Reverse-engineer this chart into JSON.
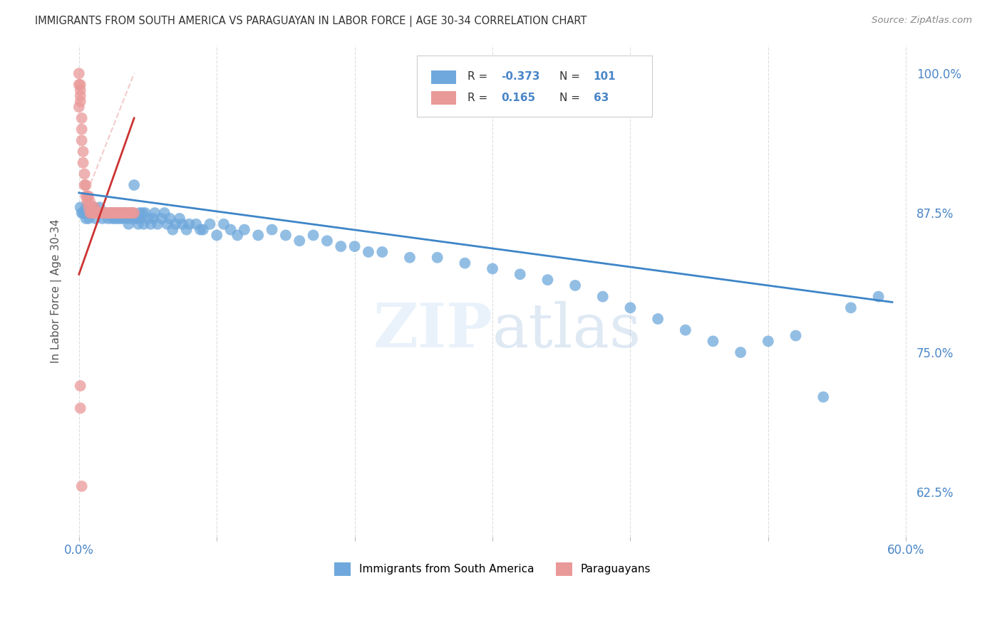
{
  "title": "IMMIGRANTS FROM SOUTH AMERICA VS PARAGUAYAN IN LABOR FORCE | AGE 30-34 CORRELATION CHART",
  "source": "Source: ZipAtlas.com",
  "ylabel": "In Labor Force | Age 30-34",
  "xlim": [
    -0.005,
    0.605
  ],
  "ylim": [
    0.585,
    1.025
  ],
  "xticks": [
    0.0,
    0.1,
    0.2,
    0.3,
    0.4,
    0.5,
    0.6
  ],
  "xticklabels": [
    "0.0%",
    "",
    "",
    "",
    "",
    "",
    "60.0%"
  ],
  "yticks_right": [
    0.625,
    0.75,
    0.875,
    1.0
  ],
  "ytick_right_labels": [
    "62.5%",
    "75.0%",
    "87.5%",
    "100.0%"
  ],
  "blue_R": -0.373,
  "blue_N": 101,
  "pink_R": 0.165,
  "pink_N": 63,
  "blue_color": "#6fa8dc",
  "pink_color": "#ea9999",
  "blue_trend_color": "#3d85c8",
  "pink_trend_color": "#cc3333",
  "ref_line_color": "#ddaaaa",
  "background_color": "#ffffff",
  "grid_color": "#dddddd",
  "text_color": "#4a86c8",
  "title_color": "#333333",
  "blue_scatter_x": [
    0.001,
    0.002,
    0.003,
    0.004,
    0.005,
    0.005,
    0.006,
    0.007,
    0.008,
    0.009,
    0.01,
    0.011,
    0.012,
    0.013,
    0.014,
    0.015,
    0.016,
    0.017,
    0.018,
    0.019,
    0.02,
    0.021,
    0.022,
    0.023,
    0.024,
    0.025,
    0.026,
    0.027,
    0.028,
    0.029,
    0.03,
    0.031,
    0.032,
    0.033,
    0.034,
    0.035,
    0.036,
    0.037,
    0.038,
    0.039,
    0.04,
    0.041,
    0.042,
    0.043,
    0.044,
    0.045,
    0.046,
    0.047,
    0.048,
    0.05,
    0.052,
    0.054,
    0.055,
    0.057,
    0.06,
    0.062,
    0.064,
    0.066,
    0.068,
    0.07,
    0.073,
    0.075,
    0.078,
    0.08,
    0.085,
    0.088,
    0.09,
    0.095,
    0.1,
    0.105,
    0.11,
    0.115,
    0.12,
    0.13,
    0.14,
    0.15,
    0.16,
    0.17,
    0.18,
    0.19,
    0.2,
    0.21,
    0.22,
    0.24,
    0.26,
    0.28,
    0.3,
    0.32,
    0.34,
    0.36,
    0.38,
    0.4,
    0.42,
    0.44,
    0.46,
    0.48,
    0.5,
    0.52,
    0.54,
    0.56,
    0.58
  ],
  "blue_scatter_y": [
    0.88,
    0.875,
    0.875,
    0.875,
    0.88,
    0.87,
    0.875,
    0.87,
    0.875,
    0.875,
    0.875,
    0.88,
    0.87,
    0.875,
    0.875,
    0.88,
    0.875,
    0.87,
    0.875,
    0.875,
    0.875,
    0.87,
    0.875,
    0.875,
    0.87,
    0.875,
    0.87,
    0.875,
    0.87,
    0.875,
    0.87,
    0.875,
    0.87,
    0.875,
    0.875,
    0.87,
    0.865,
    0.875,
    0.87,
    0.875,
    0.9,
    0.87,
    0.87,
    0.865,
    0.875,
    0.87,
    0.875,
    0.865,
    0.875,
    0.87,
    0.865,
    0.87,
    0.875,
    0.865,
    0.87,
    0.875,
    0.865,
    0.87,
    0.86,
    0.865,
    0.87,
    0.865,
    0.86,
    0.865,
    0.865,
    0.86,
    0.86,
    0.865,
    0.855,
    0.865,
    0.86,
    0.855,
    0.86,
    0.855,
    0.86,
    0.855,
    0.85,
    0.855,
    0.85,
    0.845,
    0.845,
    0.84,
    0.84,
    0.835,
    0.835,
    0.83,
    0.825,
    0.82,
    0.815,
    0.81,
    0.8,
    0.79,
    0.78,
    0.77,
    0.76,
    0.75,
    0.76,
    0.765,
    0.71,
    0.79,
    0.8
  ],
  "pink_scatter_x": [
    0.0,
    0.0,
    0.0,
    0.001,
    0.001,
    0.001,
    0.001,
    0.002,
    0.002,
    0.002,
    0.003,
    0.003,
    0.004,
    0.004,
    0.005,
    0.005,
    0.006,
    0.006,
    0.007,
    0.007,
    0.008,
    0.008,
    0.009,
    0.009,
    0.01,
    0.01,
    0.011,
    0.011,
    0.012,
    0.012,
    0.013,
    0.013,
    0.014,
    0.015,
    0.015,
    0.016,
    0.017,
    0.018,
    0.019,
    0.02,
    0.021,
    0.022,
    0.023,
    0.024,
    0.025,
    0.026,
    0.027,
    0.028,
    0.029,
    0.03,
    0.031,
    0.032,
    0.033,
    0.034,
    0.035,
    0.036,
    0.037,
    0.038,
    0.039,
    0.04,
    0.001,
    0.001,
    0.002
  ],
  "pink_scatter_y": [
    0.99,
    1.0,
    0.97,
    0.99,
    0.985,
    0.975,
    0.98,
    0.96,
    0.95,
    0.94,
    0.93,
    0.92,
    0.9,
    0.91,
    0.89,
    0.9,
    0.885,
    0.89,
    0.88,
    0.89,
    0.875,
    0.885,
    0.875,
    0.88,
    0.875,
    0.88,
    0.875,
    0.88,
    0.875,
    0.875,
    0.875,
    0.875,
    0.875,
    0.875,
    0.875,
    0.875,
    0.875,
    0.875,
    0.875,
    0.875,
    0.875,
    0.875,
    0.875,
    0.875,
    0.875,
    0.875,
    0.875,
    0.875,
    0.875,
    0.875,
    0.875,
    0.875,
    0.875,
    0.875,
    0.875,
    0.875,
    0.875,
    0.875,
    0.875,
    0.875,
    0.72,
    0.7,
    0.63
  ],
  "pink_trend_x": [
    0.0,
    0.04
  ],
  "pink_trend_y": [
    0.82,
    0.96
  ],
  "blue_trend_x": [
    0.0,
    0.59
  ],
  "blue_trend_y": [
    0.893,
    0.795
  ]
}
